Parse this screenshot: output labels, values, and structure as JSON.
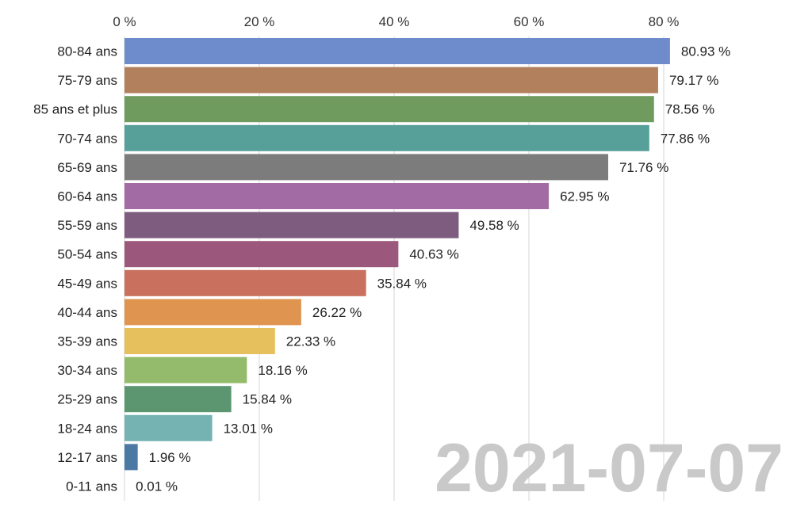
{
  "chart_data": {
    "type": "bar",
    "orientation": "horizontal",
    "title": "",
    "xlabel": "",
    "ylabel": "",
    "xlim": [
      0,
      100
    ],
    "x_ticks": [
      0,
      20,
      40,
      60,
      80
    ],
    "x_tick_labels": [
      "0 %",
      "20 %",
      "40 %",
      "60 %",
      "80 %"
    ],
    "axis_position": "top",
    "grid": true,
    "date_label": "2021-07-07",
    "categories": [
      "80-84 ans",
      "75-79 ans",
      "85 ans et plus",
      "70-74 ans",
      "65-69 ans",
      "60-64 ans",
      "55-59 ans",
      "50-54 ans",
      "45-49 ans",
      "40-44 ans",
      "35-39 ans",
      "30-34 ans",
      "25-29 ans",
      "18-24 ans",
      "12-17 ans",
      "0-11 ans"
    ],
    "values": [
      80.93,
      79.17,
      78.56,
      77.86,
      71.76,
      62.95,
      49.58,
      40.63,
      35.84,
      26.22,
      22.33,
      18.16,
      15.84,
      13.01,
      1.96,
      0.01
    ],
    "value_labels": [
      "80.93 %",
      "79.17 %",
      "78.56 %",
      "77.86 %",
      "71.76 %",
      "62.95 %",
      "49.58 %",
      "40.63 %",
      "35.84 %",
      "26.22 %",
      "22.33 %",
      "18.16 %",
      "15.84 %",
      "13.01 %",
      "1.96 %",
      "0.01 %"
    ],
    "colors": [
      "#6e8ccb",
      "#b3805e",
      "#6f9c5e",
      "#57a09a",
      "#7c7c7c",
      "#a36ba3",
      "#7d5c80",
      "#9c577c",
      "#c9705f",
      "#df9550",
      "#e6c05c",
      "#94bb6b",
      "#5c9670",
      "#75b3b3",
      "#4c79a4",
      "#8fb8d9"
    ]
  }
}
